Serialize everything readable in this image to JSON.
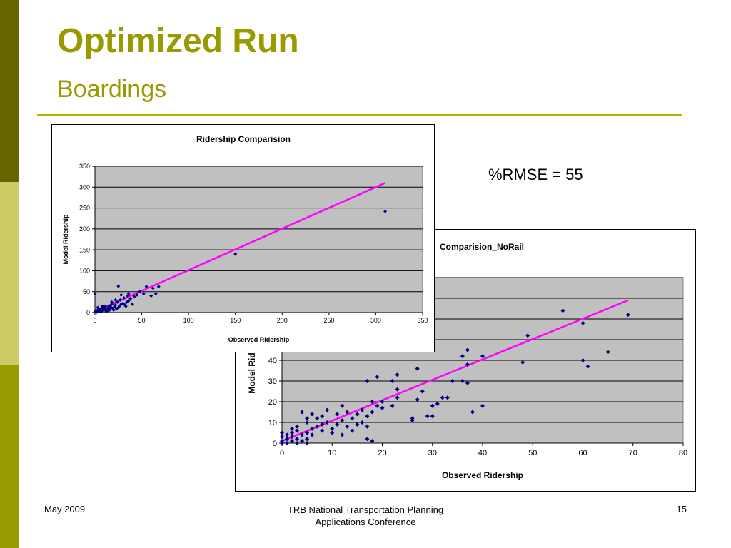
{
  "slide": {
    "title": "Optimized Run",
    "subtitle": "Boardings",
    "rmse_label": "%RMSE = 55",
    "footer_left": "May 2009",
    "footer_center_line1": "TRB National Transportation Planning",
    "footer_center_line2": "Applications Conference",
    "page_number": "15"
  },
  "colors": {
    "accent": "#999900",
    "sidebar_dark": "#666600",
    "sidebar_light": "#cccc66",
    "plot_bg": "#c0c0c0",
    "point": "#000080",
    "trend": "#ff00ff"
  },
  "chart_data": [
    {
      "type": "scatter",
      "title": "Ridership Comparision",
      "xlabel": "Observed Ridership",
      "ylabel": "Model Ridership",
      "xlim": [
        0,
        350
      ],
      "ylim": [
        0,
        350
      ],
      "xticks": [
        0,
        50,
        100,
        150,
        200,
        250,
        300,
        350
      ],
      "yticks": [
        0,
        50,
        100,
        150,
        200,
        250,
        300,
        350
      ],
      "grid": true,
      "trendline": [
        [
          0,
          2
        ],
        [
          310,
          310
        ]
      ],
      "points": [
        [
          0,
          45
        ],
        [
          0,
          2
        ],
        [
          1,
          4
        ],
        [
          2,
          1
        ],
        [
          3,
          6
        ],
        [
          4,
          3
        ],
        [
          5,
          8
        ],
        [
          6,
          2
        ],
        [
          7,
          10
        ],
        [
          8,
          5
        ],
        [
          9,
          12
        ],
        [
          10,
          7
        ],
        [
          11,
          15
        ],
        [
          12,
          9
        ],
        [
          13,
          4
        ],
        [
          14,
          11
        ],
        [
          15,
          16
        ],
        [
          16,
          8
        ],
        [
          17,
          13
        ],
        [
          18,
          20
        ],
        [
          19,
          10
        ],
        [
          20,
          6
        ],
        [
          21,
          14
        ],
        [
          22,
          18
        ],
        [
          23,
          9
        ],
        [
          24,
          25
        ],
        [
          25,
          63
        ],
        [
          26,
          15
        ],
        [
          27,
          30
        ],
        [
          28,
          20
        ],
        [
          30,
          22
        ],
        [
          31,
          35
        ],
        [
          32,
          18
        ],
        [
          34,
          25
        ],
        [
          35,
          40
        ],
        [
          36,
          28
        ],
        [
          38,
          33
        ],
        [
          40,
          20
        ],
        [
          42,
          38
        ],
        [
          45,
          42
        ],
        [
          48,
          50
        ],
        [
          52,
          45
        ],
        [
          55,
          62
        ],
        [
          60,
          40
        ],
        [
          62,
          58
        ],
        [
          65,
          45
        ],
        [
          68,
          62
        ],
        [
          150,
          140
        ],
        [
          310,
          242
        ],
        [
          3,
          12
        ],
        [
          5,
          2
        ],
        [
          8,
          15
        ],
        [
          12,
          3
        ],
        [
          15,
          5
        ],
        [
          18,
          25
        ],
        [
          22,
          30
        ],
        [
          25,
          12
        ],
        [
          28,
          42
        ],
        [
          33,
          15
        ],
        [
          36,
          45
        ]
      ]
    },
    {
      "type": "scatter",
      "title": "Comparision_NoRail",
      "xlabel": "Observed Ridership",
      "ylabel": "Model Ridership",
      "xlim": [
        0,
        80
      ],
      "ylim": [
        0,
        80
      ],
      "xticks": [
        0,
        10,
        20,
        30,
        40,
        50,
        60,
        70,
        80
      ],
      "yticks": [
        0,
        10,
        20,
        30,
        40
      ],
      "grid": true,
      "trendline": [
        [
          0,
          1
        ],
        [
          69,
          69
        ]
      ],
      "points": [
        [
          0,
          0
        ],
        [
          0,
          1
        ],
        [
          0,
          3
        ],
        [
          0,
          5
        ],
        [
          1,
          0
        ],
        [
          1,
          2
        ],
        [
          1,
          4
        ],
        [
          2,
          1
        ],
        [
          2,
          3
        ],
        [
          2,
          5
        ],
        [
          2,
          7
        ],
        [
          3,
          0
        ],
        [
          3,
          2
        ],
        [
          3,
          6
        ],
        [
          3,
          8
        ],
        [
          4,
          1
        ],
        [
          4,
          4
        ],
        [
          4,
          15
        ],
        [
          5,
          0
        ],
        [
          5,
          2
        ],
        [
          5,
          5
        ],
        [
          5,
          10
        ],
        [
          5,
          12
        ],
        [
          6,
          4
        ],
        [
          6,
          7
        ],
        [
          6,
          14
        ],
        [
          7,
          8
        ],
        [
          7,
          12
        ],
        [
          8,
          6
        ],
        [
          8,
          9
        ],
        [
          8,
          13
        ],
        [
          9,
          10
        ],
        [
          9,
          16
        ],
        [
          10,
          5
        ],
        [
          10,
          7
        ],
        [
          11,
          9
        ],
        [
          11,
          14
        ],
        [
          12,
          4
        ],
        [
          12,
          11
        ],
        [
          12,
          18
        ],
        [
          13,
          8
        ],
        [
          13,
          15
        ],
        [
          14,
          6
        ],
        [
          14,
          12
        ],
        [
          15,
          9
        ],
        [
          15,
          14
        ],
        [
          16,
          10
        ],
        [
          16,
          16
        ],
        [
          17,
          2
        ],
        [
          17,
          8
        ],
        [
          17,
          13
        ],
        [
          17,
          30
        ],
        [
          18,
          1
        ],
        [
          18,
          15
        ],
        [
          18,
          20
        ],
        [
          19,
          18
        ],
        [
          19,
          32
        ],
        [
          20,
          17
        ],
        [
          20,
          20
        ],
        [
          22,
          18
        ],
        [
          22,
          30
        ],
        [
          23,
          22
        ],
        [
          23,
          26
        ],
        [
          23,
          33
        ],
        [
          26,
          11
        ],
        [
          26,
          12
        ],
        [
          27,
          21
        ],
        [
          27,
          36
        ],
        [
          28,
          25
        ],
        [
          29,
          13
        ],
        [
          30,
          13
        ],
        [
          30,
          18
        ],
        [
          31,
          19
        ],
        [
          32,
          22
        ],
        [
          33,
          22
        ],
        [
          34,
          30
        ],
        [
          36,
          30
        ],
        [
          36,
          42
        ],
        [
          37,
          29
        ],
        [
          37,
          38
        ],
        [
          37,
          45
        ],
        [
          38,
          15
        ],
        [
          40,
          18
        ],
        [
          40,
          42
        ],
        [
          48,
          39
        ],
        [
          49,
          52
        ],
        [
          56,
          64
        ],
        [
          60,
          40
        ],
        [
          60,
          58
        ],
        [
          61,
          37
        ],
        [
          65,
          44
        ],
        [
          69,
          62
        ]
      ]
    }
  ]
}
